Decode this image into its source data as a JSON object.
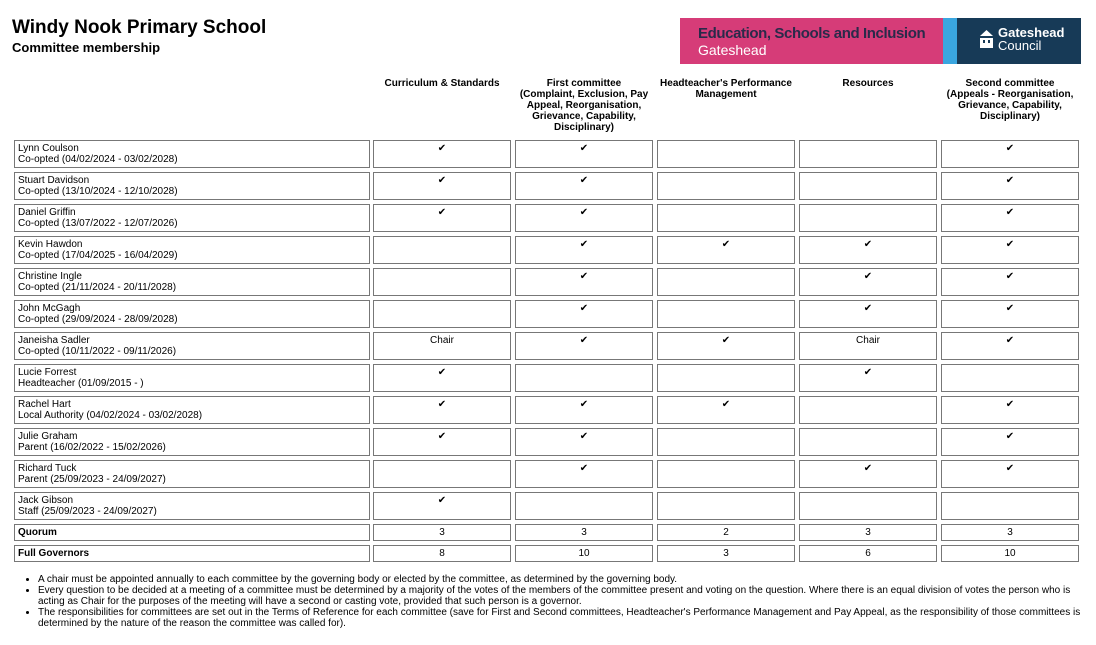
{
  "header": {
    "title": "Windy Nook Primary School",
    "subtitle": "Committee membership",
    "logo_left": [
      "Education, Schools and Inclusion",
      "Gateshead"
    ],
    "logo_right": [
      "Gateshead",
      "Council"
    ]
  },
  "table": {
    "columns": [
      "Curriculum & Standards",
      "First committee\n(Complaint, Exclusion, Pay Appeal, Reorganisation, Grievance, Capability, Disciplinary)",
      "Headteacher's Performance Management",
      "Resources",
      "Second committee\n(Appeals - Reorganisation, Grievance, Capability, Disciplinary)"
    ],
    "rows": [
      {
        "name": "Lynn Coulson",
        "role": "Co-opted (04/02/2024 - 03/02/2028)",
        "cells": [
          "✔",
          "✔",
          null,
          null,
          "✔"
        ]
      },
      {
        "name": "Stuart Davidson",
        "role": "Co-opted (13/10/2024 - 12/10/2028)",
        "cells": [
          "✔",
          "✔",
          null,
          null,
          "✔"
        ]
      },
      {
        "name": "Daniel Griffin",
        "role": "Co-opted (13/07/2022 - 12/07/2026)",
        "cells": [
          "✔",
          "✔",
          null,
          null,
          "✔"
        ]
      },
      {
        "name": "Kevin Hawdon",
        "role": "Co-opted (17/04/2025 - 16/04/2029)",
        "cells": [
          null,
          "✔",
          "✔",
          "✔",
          "✔"
        ]
      },
      {
        "name": "Christine Ingle",
        "role": "Co-opted (21/11/2024 - 20/11/2028)",
        "cells": [
          null,
          "✔",
          null,
          "✔",
          "✔"
        ]
      },
      {
        "name": "John McGagh",
        "role": "Co-opted (29/09/2024 - 28/09/2028)",
        "cells": [
          null,
          "✔",
          null,
          "✔",
          "✔"
        ]
      },
      {
        "name": "Janeisha Sadler",
        "role": "Co-opted (10/11/2022 - 09/11/2026)",
        "cells": [
          "Chair",
          "✔",
          "✔",
          "Chair",
          "✔"
        ]
      },
      {
        "name": "Lucie Forrest",
        "role": "Headteacher (01/09/2015 - )",
        "cells": [
          "✔",
          null,
          null,
          "✔",
          null
        ]
      },
      {
        "name": "Rachel Hart",
        "role": "Local Authority (04/02/2024 - 03/02/2028)",
        "cells": [
          "✔",
          "✔",
          "✔",
          null,
          "✔"
        ]
      },
      {
        "name": "Julie Graham",
        "role": "Parent (16/02/2022 - 15/02/2026)",
        "cells": [
          "✔",
          "✔",
          null,
          null,
          "✔"
        ]
      },
      {
        "name": "Richard Tuck",
        "role": "Parent (25/09/2023 - 24/09/2027)",
        "cells": [
          null,
          "✔",
          null,
          "✔",
          "✔"
        ]
      },
      {
        "name": "Jack Gibson",
        "role": "Staff (25/09/2023 - 24/09/2027)",
        "cells": [
          "✔",
          null,
          null,
          null,
          null
        ]
      }
    ],
    "summary": [
      {
        "label": "Quorum",
        "cells": [
          3,
          3,
          2,
          3,
          3
        ]
      },
      {
        "label": "Full Governors",
        "cells": [
          8,
          10,
          3,
          6,
          10
        ]
      }
    ]
  },
  "notes": [
    "A chair must be appointed annually to each committee by the governing body or elected by the committee, as determined by the governing body.",
    "Every question to be decided at a meeting of a committee must be determined by a majority of the votes of the members of the committee present and voting on the question. Where there is an equal division of votes the person who is acting as Chair for the purposes of the meeting will have a second or casting vote, provided that such person is a governor.",
    "The responsibilities for committees are set out in the Terms of Reference for each committee (save for First and Second committees, Headteacher's Performance Management and Pay Appeal, as the responsibility of those committees is determined by the nature of the reason the committee was called for)."
  ]
}
